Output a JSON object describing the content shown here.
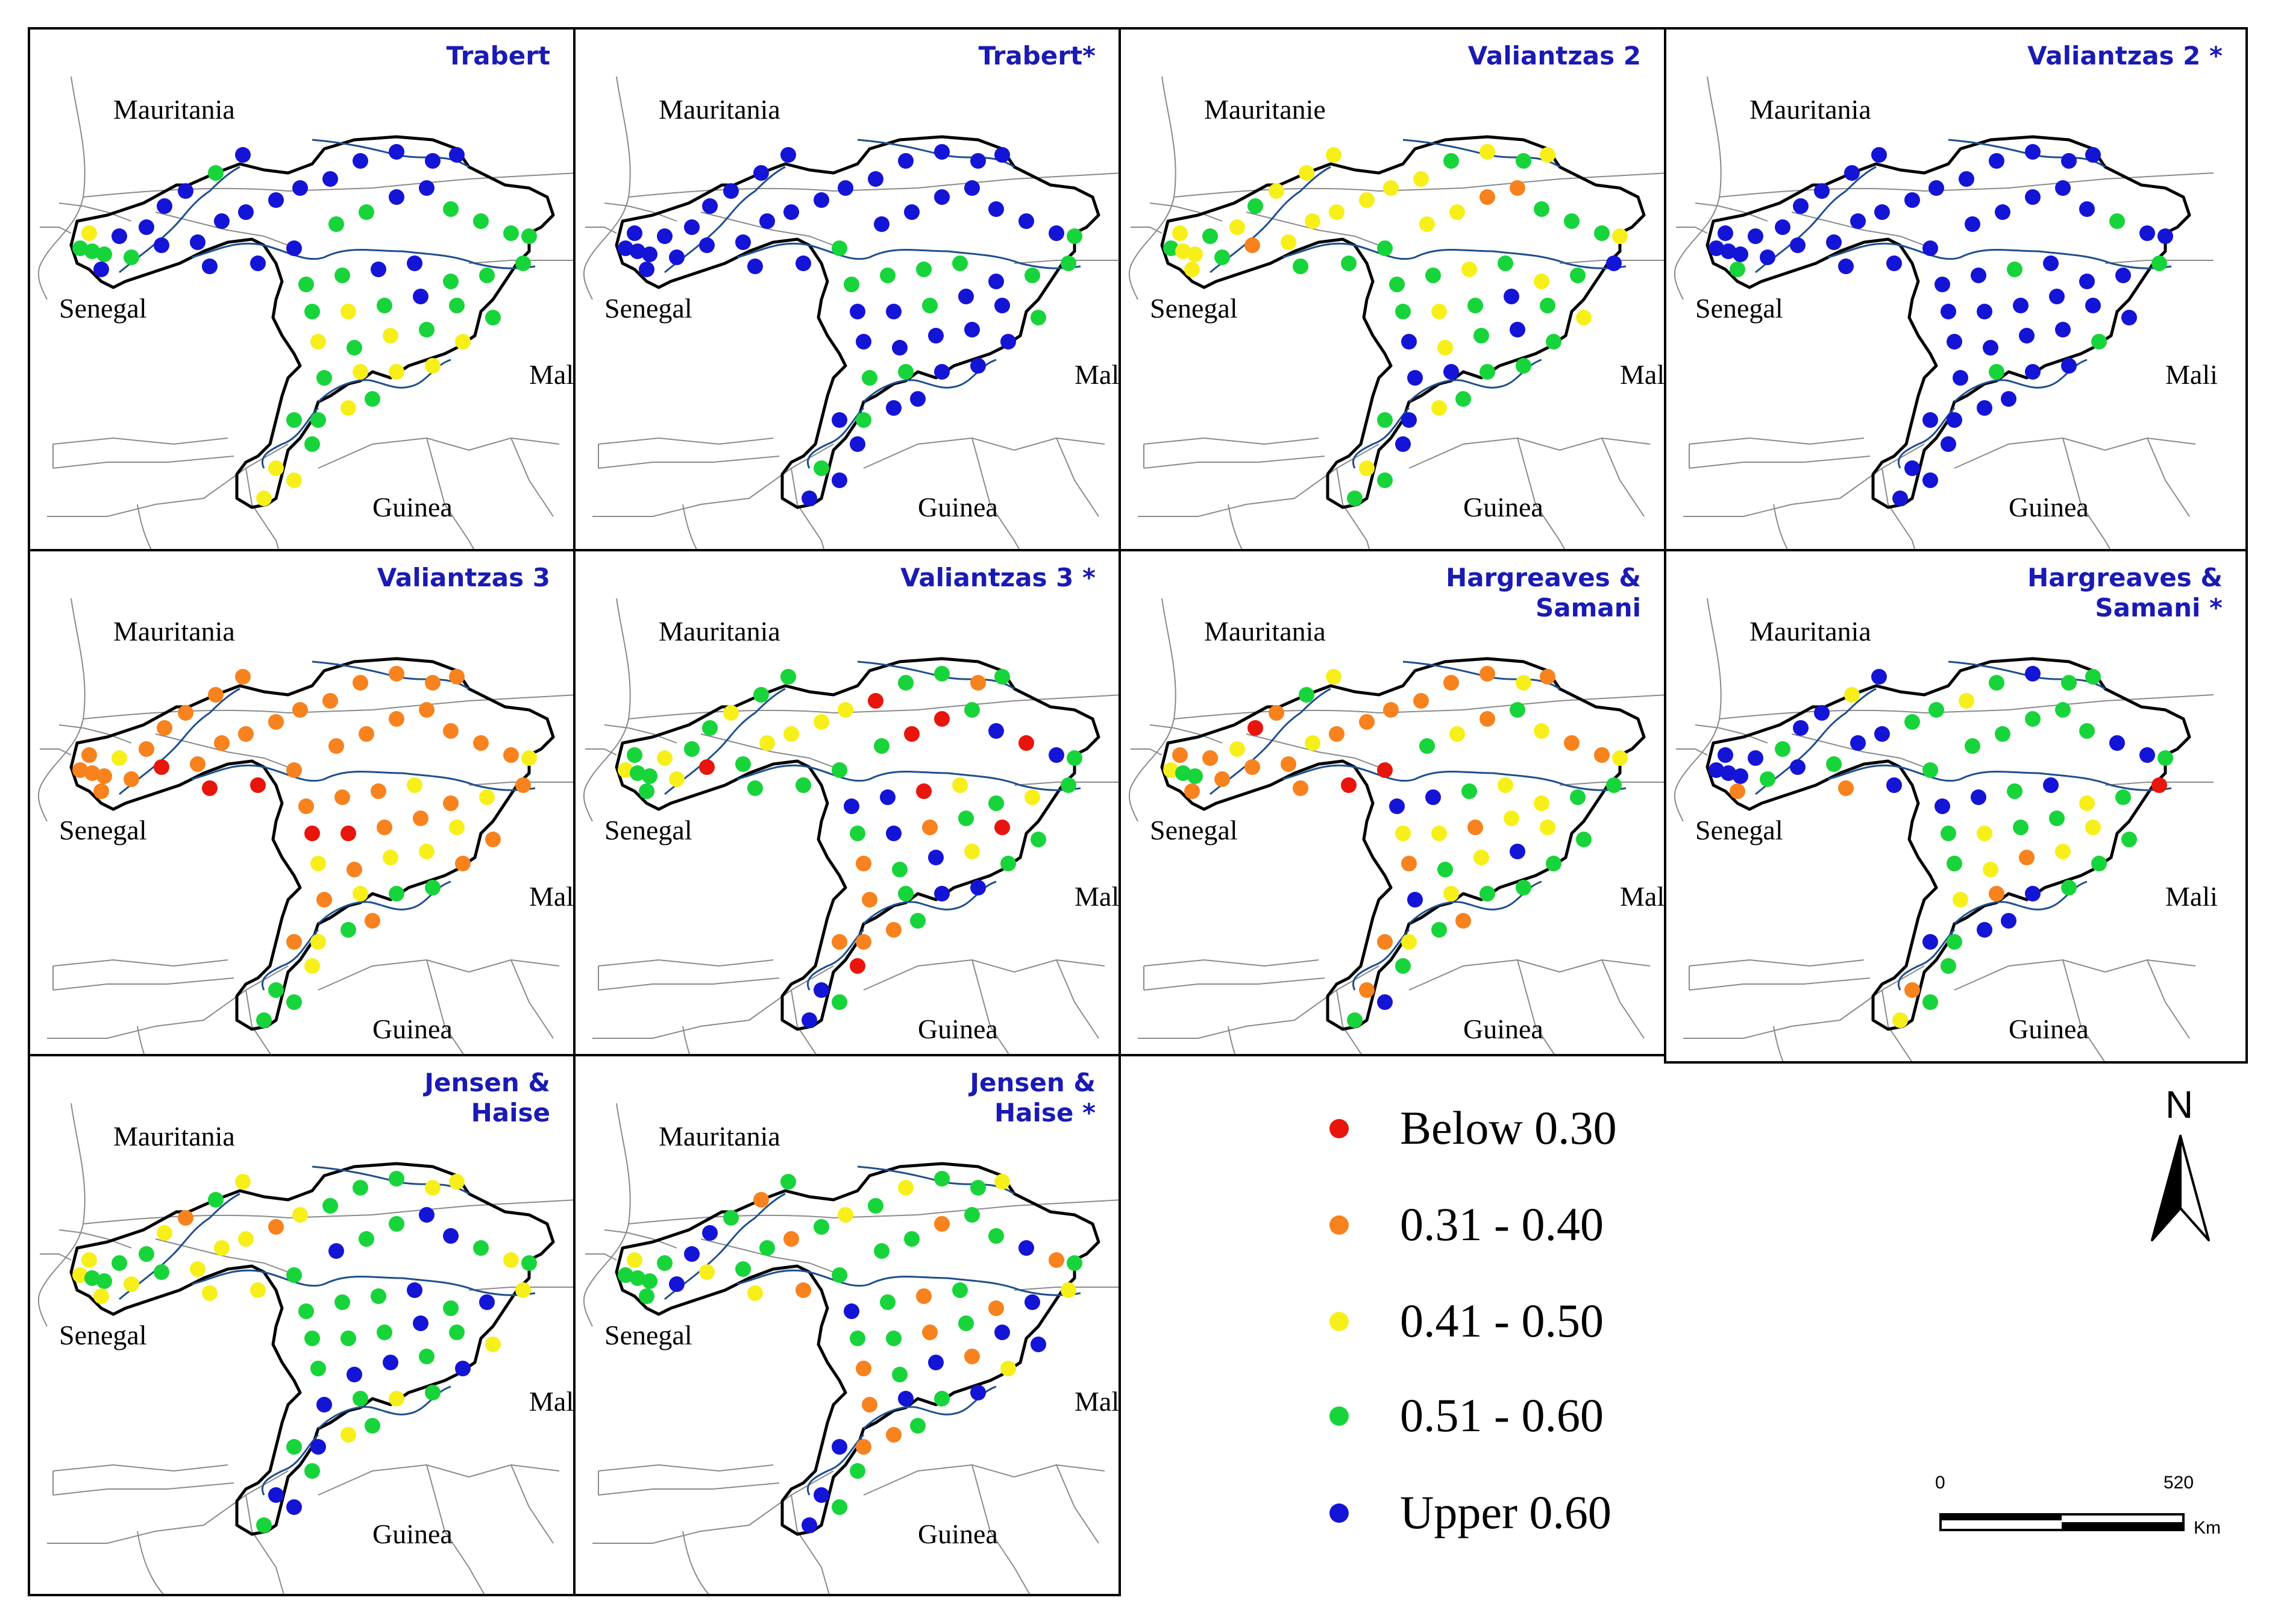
{
  "colors": {
    "below_030": "#e8150c",
    "r031_040": "#f7821e",
    "r041_050": "#f7ef1a",
    "r051_060": "#17d43a",
    "upper_060": "#1414d6",
    "title": "#1a1ab4",
    "river": "#1e4f8c",
    "basin": "#000000",
    "borders": "#8a8a8a"
  },
  "legend": {
    "items": [
      {
        "label": "Below 0.30",
        "color_key": "below_030"
      },
      {
        "label": "0.31 - 0.40",
        "color_key": "r031_040"
      },
      {
        "label": "0.41 - 0.50",
        "color_key": "r041_050"
      },
      {
        "label": "0.51 - 0.60",
        "color_key": "r051_060"
      },
      {
        "label": "Upper 0.60",
        "color_key": "upper_060"
      }
    ]
  },
  "north_arrow": {
    "label": "N"
  },
  "scale_bar": {
    "start": "0",
    "end": "520",
    "unit": "Km"
  },
  "panels": [
    {
      "title_lines": [
        "Trabert"
      ],
      "countries": {
        "north": "Mauritania",
        "west": "Senegal",
        "east": "Mali",
        "south": "Guinea"
      },
      "stations": "GGGYBBBBGBBGBBBBBBBBBBBBBBGGBBGGGGGGBBGGGGYGBGGYGYGYGYYYGGYGYYGY"
    },
    {
      "title_lines": [
        "Trabert*"
      ],
      "countries": {
        "north": "Mauritania",
        "west": "Senegal",
        "east": "Mali",
        "south": "Guinea"
      },
      "stations": "BBBBBBBBBBBBBBBBBBBBBBBBBGBBBBBBBGGGGGBGGBBGBBGBBBBBGGBBBGBBGBBB"
    },
    {
      "title_lines": [
        "Valiantzas 2"
      ],
      "countries": {
        "north": "Mauritanie",
        "west": "Senegal",
        "east": "Mali",
        "south": "Guinea"
      },
      "stations": "GYYYGYGYYYYGOYYYYYYGYGYGGGYYOOGGGYGGYGYGBGYGBGYBYGBGBBGGGBYGYGBG"
    },
    {
      "title_lines": [
        "Valiantzas 2 *"
      ],
      "countries": {
        "north": "Mauritania",
        "west": "Senegal",
        "east": "Mali",
        "south": "Guinea"
      },
      "stations": "BBBBBBBBBBGBBBBBBBBBBBBBBBBBBBBGBBBBGBBBGBBBBBBBBBBGBGBBBBBBBBBB"
    },
    {
      "title_lines": [
        "Valiantzas 3"
      ],
      "countries": {
        "north": "Mauritania",
        "west": "Senegal",
        "east": "Mali",
        "south": "Guinea"
      },
      "stations": "OOOOYOOOOOOOROOOOOOOOOORROOOOOOOOYOOOYOYORROOYOYOYYOOYGGOYGOGGYG"
    },
    {
      "title_lines": [
        "Valiantzas 3 *"
      ],
      "countries": {
        "north": "Mauritania",
        "west": "Senegal",
        "east": "Mali",
        "south": "Guinea"
      },
      "stations": "YGGGYGGYGGGYRGYYYYRGGOGGGGGRRGBRBGBBRYGYGGBOGRGOGBYGOGBBOOOGBGRB"
    },
    {
      "title_lines": [
        "Hargreaves &",
        "Samani"
      ],
      "countries": {
        "north": "Mauritania",
        "west": "Senegal",
        "east": "Mali",
        "south": "Guinea"
      },
      "stations": "YGGOOYROGYOOOOYOOOOOOYOORRGYOGYOOYBBGYYGGYYOYYGOGYBGBYGGOYGOOBGG"
    },
    {
      "title_lines": [
        "Hargreaves &",
        "Samani *"
      ],
      "countries": {
        "north": "Mauritania",
        "west": "Senegal",
        "east": "Mali",
        "south": "Guinea"
      },
      "stations": "BBBBBGBBYBOGBGBBGGYGBGGOBGGGGGGBBGBBGBYGRGYGGYGGYOYGYOBGBGBBOGGY"
    },
    {
      "title_lines": [
        "Jensen &",
        "Haise"
      ],
      "countries": {
        "north": "Mauritania",
        "west": "Senegal",
        "east": "Mali",
        "south": "Guinea"
      },
      "stations": "YGGYGGYOGYYYGYYYOYGGGYYYYGBGGBBGYGGGGBGBYGGGBGYGBBGBBGYGGBYGBBGG"
    },
    {
      "title_lines": [
        "Jensen &",
        "Haise *"
      ],
      "countries": {
        "north": "Mauritania",
        "west": "Senegal",
        "east": "Mali",
        "south": "Guinea"
      },
      "stations": "GGGYGBBGOGGBYGGOGYGYGGYYOGGGOGGBOGBGOGOBYGGOGBBOGBOYOBGBBOOGBGGB"
    }
  ]
}
